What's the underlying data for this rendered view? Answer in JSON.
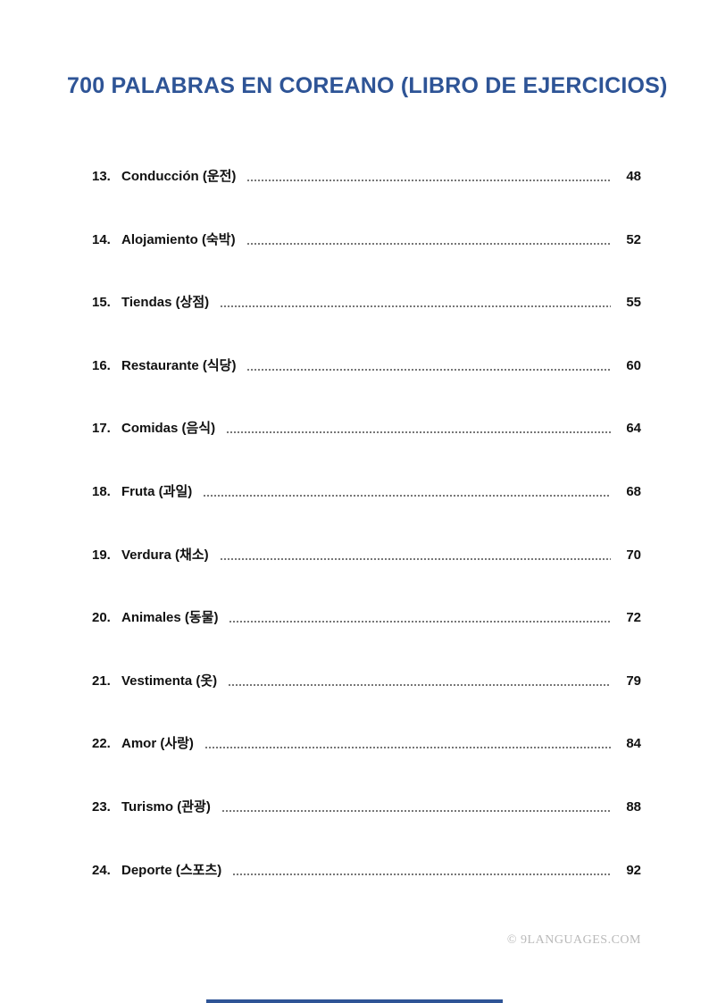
{
  "page": {
    "title": "700 PALABRAS EN COREANO (LIBRO DE EJERCICIOS)",
    "footer_credit": "© 9LANGUAGES.COM",
    "accent_color": "#2e5496",
    "toc": {
      "entries": [
        {
          "number": "13.",
          "label": "Conducción (운전)",
          "page": "48"
        },
        {
          "number": "14.",
          "label": "Alojamiento (숙박)",
          "page": "52"
        },
        {
          "number": "15.",
          "label": "Tiendas (상점)",
          "page": "55"
        },
        {
          "number": "16.",
          "label": "Restaurante (식당)",
          "page": "60"
        },
        {
          "number": "17.",
          "label": "Comidas (음식)",
          "page": "64"
        },
        {
          "number": "18.",
          "label": "Fruta (과일)",
          "page": "68"
        },
        {
          "number": "19.",
          "label": "Verdura (채소)",
          "page": "70"
        },
        {
          "number": "20.",
          "label": "Animales (동물)",
          "page": "72"
        },
        {
          "number": "21.",
          "label": "Vestimenta (옷)",
          "page": "79"
        },
        {
          "number": "22.",
          "label": "Amor (사랑)",
          "page": "84"
        },
        {
          "number": "23.",
          "label": "Turismo (관광)",
          "page": "88"
        },
        {
          "number": "24.",
          "label": "Deporte (스포츠)",
          "page": "92"
        }
      ]
    }
  }
}
